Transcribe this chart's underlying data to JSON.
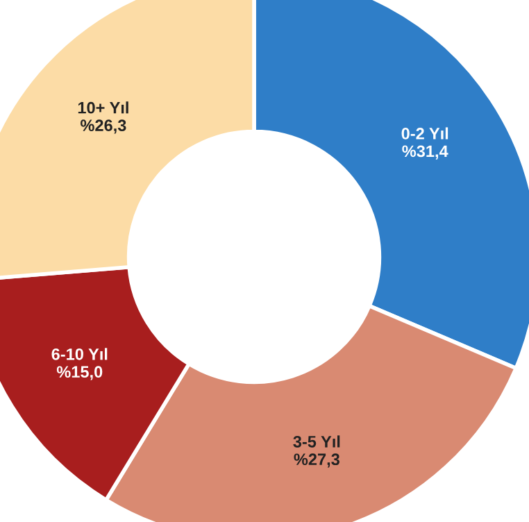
{
  "chart_data": {
    "type": "donut",
    "categories": [
      "0-2 Yıl",
      "3-5 Yıl",
      "6-10 Yıl",
      "10+ Yıl"
    ],
    "values": [
      31.4,
      27.3,
      15.0,
      26.3
    ],
    "value_labels": [
      "%31,4",
      "%27,3",
      "%15,0",
      "%26,3"
    ],
    "colors": [
      "#2f7ec8",
      "#d98a72",
      "#a81e1e",
      "#fcdca6"
    ]
  }
}
